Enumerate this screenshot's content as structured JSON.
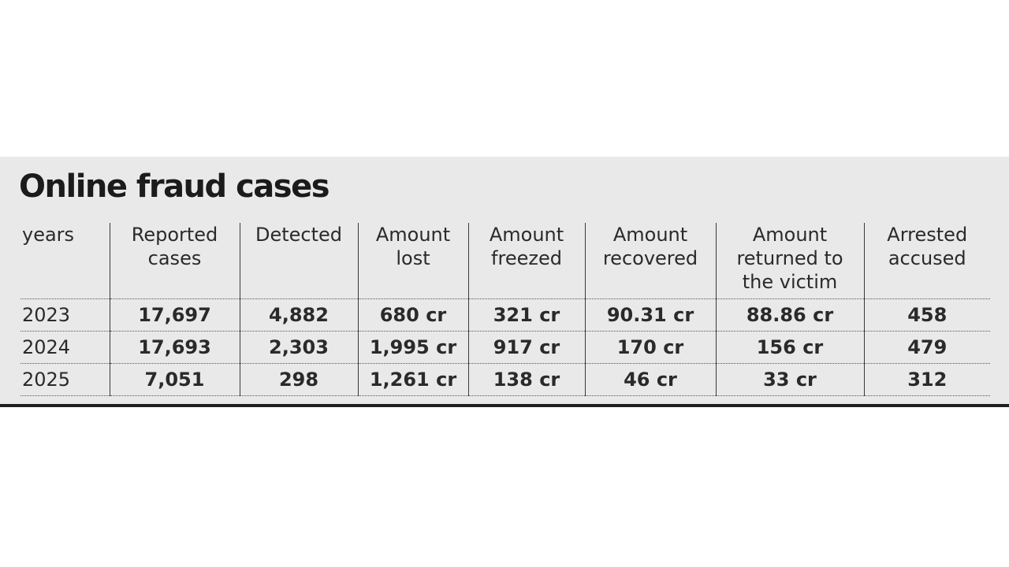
{
  "title": "Online fraud cases",
  "table": {
    "headers": [
      "years",
      "Reported\ncases",
      "Detected",
      "Amount\nlost",
      "Amount\nfreezed",
      "Amount\nrecovered",
      "Amount\nreturned to\nthe victim",
      "Arrested\naccused"
    ],
    "rows": [
      [
        "2023",
        "17,697",
        "4,882",
        "680 cr",
        "321 cr",
        "90.31 cr",
        "88.86 cr",
        "458"
      ],
      [
        "2024",
        "17,693",
        "2,303",
        "1,995 cr",
        "917 cr",
        "170 cr",
        "156 cr",
        "479"
      ],
      [
        "2025",
        "7,051",
        "298",
        "1,261 cr",
        "138 cr",
        "46 cr",
        "33 cr",
        "312"
      ]
    ]
  }
}
